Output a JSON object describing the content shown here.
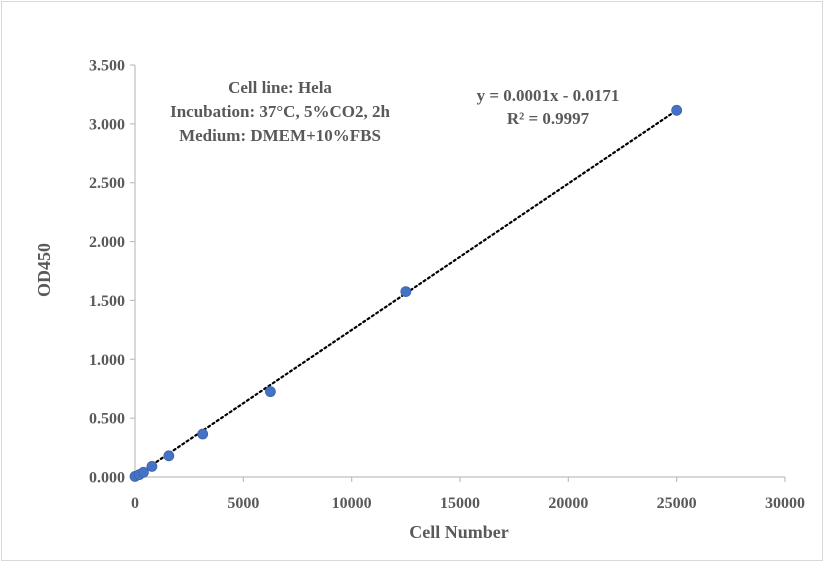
{
  "chart_data": {
    "type": "scatter",
    "title": "",
    "xlabel": "Cell Number",
    "ylabel": "OD450",
    "xlim": [
      0,
      30000
    ],
    "ylim": [
      0,
      3.5
    ],
    "x_ticks": [
      "0",
      "5000",
      "10000",
      "15000",
      "20000",
      "25000",
      "30000"
    ],
    "y_ticks": [
      "0.000",
      "0.500",
      "1.000",
      "1.500",
      "2.000",
      "2.500",
      "3.000",
      "3.500"
    ],
    "grid": false,
    "legend": "none",
    "series": [
      {
        "color": "#4472c4",
        "points": [
          {
            "x": 0,
            "y": 0.005
          },
          {
            "x": 195,
            "y": 0.02
          },
          {
            "x": 390,
            "y": 0.04
          },
          {
            "x": 781,
            "y": 0.09
          },
          {
            "x": 1562,
            "y": 0.18
          },
          {
            "x": 3125,
            "y": 0.365
          },
          {
            "x": 6250,
            "y": 0.725
          },
          {
            "x": 12500,
            "y": 1.575
          },
          {
            "x": 25000,
            "y": 3.115
          }
        ]
      }
    ],
    "trendline": {
      "style": "dotted",
      "color": "#000000",
      "x_from": 0,
      "x_to": 25000,
      "y_from": 0.005,
      "y_to": 3.115
    },
    "annotations": {
      "conditions": [
        "Cell line: Hela",
        "Incubation: 37°C, 5%CO2, 2h",
        "Medium: DMEM+10%FBS"
      ],
      "equation": "y = 0.0001x - 0.0171",
      "r_squared": "R² = 0.9997"
    }
  }
}
